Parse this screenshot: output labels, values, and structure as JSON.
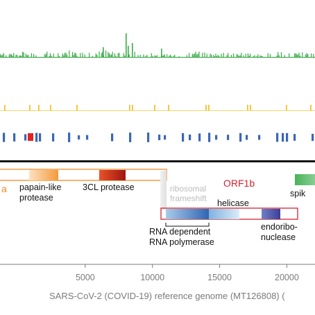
{
  "orf1a": {
    "label": "a",
    "regions": [
      {
        "name": "papain-like",
        "name2": "protease"
      },
      {
        "name": "3CL protease"
      }
    ]
  },
  "frameshift": {
    "line1": "ribosomal",
    "line2": "frameshift"
  },
  "orf1b": {
    "label": "ORF1b",
    "regions": [
      {
        "name": "helicase"
      },
      {
        "name": "RNA dependent",
        "name2": "RNA polymerase"
      },
      {
        "name": "endoribo-",
        "name2": "nuclease"
      }
    ]
  },
  "spike": {
    "label": "spik"
  },
  "axis": {
    "ticks": [
      "5000",
      "10000",
      "15000",
      "20000"
    ],
    "tick_values": [
      5000,
      10000,
      15000,
      20000
    ],
    "title": "SARS-CoV-2 (COVID-19) reference genome (MT126808) ("
  },
  "colors": {
    "green": "#3aaa48",
    "yellow": "#f3c22a",
    "blue": "#3a66b6",
    "red": "#e5221f",
    "orf1a": "#f08a2a",
    "orf1b": "#d6222e",
    "frameshift": "#bdbdbd",
    "axis": "#7a7a7a"
  }
}
